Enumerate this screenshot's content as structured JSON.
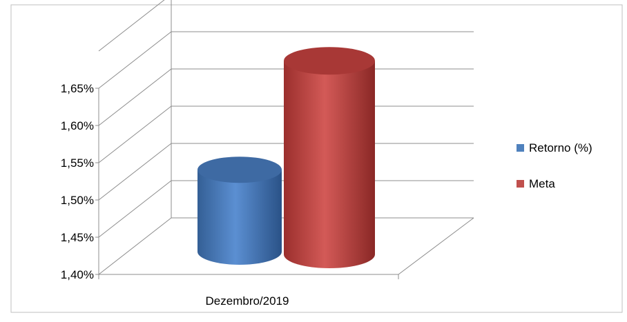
{
  "chart_data": {
    "type": "bar",
    "title": "",
    "xlabel": "",
    "ylabel": "",
    "categories": [
      "Dezembro/2019"
    ],
    "series": [
      {
        "name": "Retorno (%)",
        "values": [
          1.51
        ],
        "color": "#4F81BD"
      },
      {
        "name": "Meta",
        "values": [
          1.66
        ],
        "color": "#C0504D"
      }
    ],
    "ylim": [
      1.4,
      1.7
    ],
    "yticks": [
      "1,40%",
      "1,45%",
      "1,50%",
      "1,55%",
      "1,60%",
      "1,65%"
    ],
    "grid": true,
    "legend": "right",
    "style": "3d-cylinder"
  }
}
